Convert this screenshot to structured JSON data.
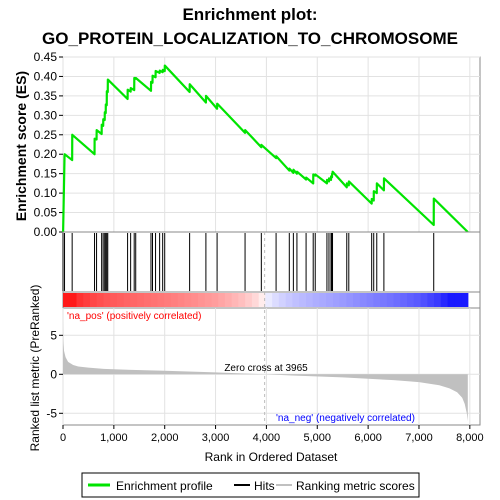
{
  "chart_data": {
    "type": "line",
    "title_line1": "Enrichment plot:",
    "title_line2": "GO_PROTEIN_LOCALIZATION_TO_CHROMOSOME",
    "es_ylabel": "Enrichment score (ES)",
    "rank_ylabel": "Ranked list metric (PreRanked)",
    "xlabel": "Rank in Ordered Dataset",
    "xlim": [
      0,
      8200
    ],
    "es_ylim": [
      0,
      0.45
    ],
    "rank_ylim": [
      -6.5,
      8.5
    ],
    "x_ticks": [
      0,
      1000,
      2000,
      3000,
      4000,
      5000,
      6000,
      7000,
      8000
    ],
    "x_tick_labels": [
      "0",
      "1,000",
      "2,000",
      "3,000",
      "4,000",
      "5,000",
      "6,000",
      "7,000",
      "8,000"
    ],
    "es_ticks": [
      0.0,
      0.05,
      0.1,
      0.15,
      0.2,
      0.25,
      0.3,
      0.35,
      0.4,
      0.45
    ],
    "es_tick_labels": [
      "0.00",
      "0.05",
      "0.10",
      "0.15",
      "0.20",
      "0.25",
      "0.30",
      "0.35",
      "0.40",
      "0.45"
    ],
    "rank_ticks": [
      -5,
      0,
      5
    ],
    "rank_tick_labels": [
      "-5",
      "0",
      "5"
    ],
    "grid": true,
    "legend_position": "bottom",
    "colors": {
      "es_line": "#00e400",
      "hits": "#000000",
      "metric": "#c0c0c0",
      "pos_label": "#ff0000",
      "neg_label": "#0000ff",
      "zero_line": "#bbbbbb"
    },
    "zero_cross_label": "Zero cross at 3965",
    "zero_cross_rank": 3965,
    "pos_label": "'na_pos' (positively correlated)",
    "neg_label": "'na_neg' (negatively correlated)",
    "legend": [
      {
        "label": "Enrichment profile",
        "kind": "line",
        "color": "#00e400"
      },
      {
        "label": "Hits",
        "kind": "line",
        "color": "#000000"
      },
      {
        "label": "Ranking metric scores",
        "kind": "line",
        "color": "#c0c0c0"
      }
    ],
    "hits": [
      0,
      30,
      180,
      620,
      660,
      760,
      790,
      820,
      840,
      860,
      880,
      1270,
      1330,
      1400,
      1430,
      1730,
      1760,
      1820,
      1900,
      1960,
      2000,
      2490,
      2810,
      3030,
      3580,
      3900,
      4190,
      4450,
      4530,
      4600,
      4780,
      4920,
      4960,
      5190,
      5230,
      5270,
      5290,
      5300,
      5580,
      5620,
      6070,
      6110,
      6170,
      6310,
      7290
    ],
    "es_profile": {
      "x": [
        0,
        2,
        30,
        32,
        180,
        182,
        620,
        622,
        660,
        662,
        760,
        762,
        790,
        792,
        820,
        822,
        840,
        842,
        860,
        862,
        880,
        882,
        1270,
        1272,
        1330,
        1332,
        1400,
        1402,
        1430,
        1432,
        1730,
        1732,
        1760,
        1762,
        1820,
        1822,
        1900,
        1902,
        1960,
        1962,
        2000,
        2002,
        2490,
        2492,
        2810,
        2812,
        3030,
        3032,
        3580,
        3582,
        3900,
        3902,
        4190,
        4192,
        4450,
        4452,
        4530,
        4532,
        4600,
        4602,
        4780,
        4782,
        4920,
        4922,
        4960,
        4962,
        5190,
        5192,
        5230,
        5232,
        5270,
        5272,
        5290,
        5292,
        5300,
        5302,
        5580,
        5582,
        5620,
        5622,
        6070,
        6072,
        6110,
        6112,
        6170,
        6172,
        6310,
        6312,
        7290,
        7292,
        7960
      ],
      "y": [
        0.0,
        0.0,
        0.195,
        0.2,
        0.185,
        0.25,
        0.2,
        0.24,
        0.238,
        0.262,
        0.252,
        0.276,
        0.273,
        0.29,
        0.288,
        0.308,
        0.306,
        0.328,
        0.326,
        0.362,
        0.36,
        0.392,
        0.342,
        0.366,
        0.361,
        0.37,
        0.365,
        0.396,
        0.394,
        0.396,
        0.363,
        0.386,
        0.384,
        0.402,
        0.398,
        0.414,
        0.409,
        0.415,
        0.411,
        0.417,
        0.414,
        0.428,
        0.36,
        0.38,
        0.333,
        0.35,
        0.317,
        0.33,
        0.255,
        0.262,
        0.218,
        0.224,
        0.19,
        0.195,
        0.158,
        0.163,
        0.152,
        0.16,
        0.15,
        0.155,
        0.135,
        0.14,
        0.125,
        0.148,
        0.145,
        0.148,
        0.125,
        0.134,
        0.13,
        0.138,
        0.134,
        0.143,
        0.141,
        0.15,
        0.149,
        0.155,
        0.115,
        0.125,
        0.12,
        0.13,
        0.073,
        0.085,
        0.081,
        0.105,
        0.1,
        0.125,
        0.107,
        0.138,
        0.018,
        0.086,
        0.0
      ]
    },
    "ranking_metric": {
      "x": [
        0,
        5,
        20,
        50,
        100,
        200,
        300,
        500,
        800,
        1200,
        2000,
        3000,
        3500,
        3965,
        4500,
        5500,
        6500,
        7000,
        7400,
        7600,
        7750,
        7850,
        7900,
        7940,
        7960
      ],
      "y": [
        7.0,
        4.5,
        3.0,
        2.2,
        1.6,
        1.2,
        1.0,
        0.85,
        0.7,
        0.6,
        0.45,
        0.25,
        0.12,
        0.0,
        -0.15,
        -0.4,
        -0.75,
        -1.0,
        -1.4,
        -1.8,
        -2.3,
        -3.0,
        -3.8,
        -5.0,
        -6.0
      ]
    }
  }
}
